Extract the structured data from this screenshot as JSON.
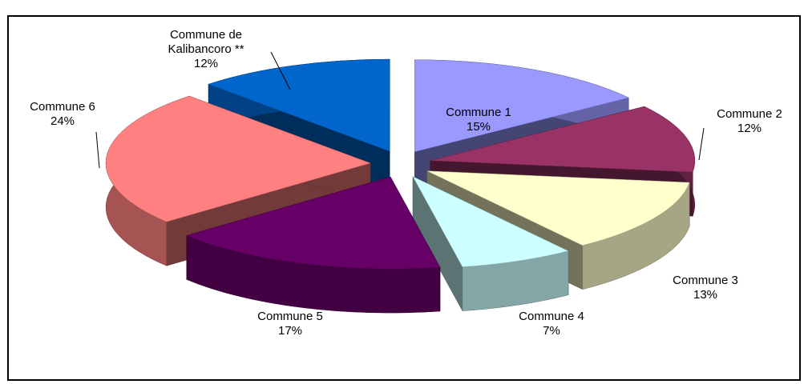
{
  "chart_data": {
    "type": "pie",
    "categories": [
      "Commune 1",
      "Commune 2",
      "Commune 3",
      "Commune 4",
      "Commune 5",
      "Commune 6",
      "Commune de Kalibancoro **"
    ],
    "values": [
      15,
      12,
      13,
      7,
      17,
      24,
      12
    ],
    "value_labels": [
      "15%",
      "12%",
      "13%",
      "7%",
      "17%",
      "24%",
      "12%"
    ],
    "colors": [
      "#9999ff",
      "#993366",
      "#ffffcc",
      "#ccffff",
      "#660066",
      "#ff8080",
      "#0066cc"
    ]
  }
}
